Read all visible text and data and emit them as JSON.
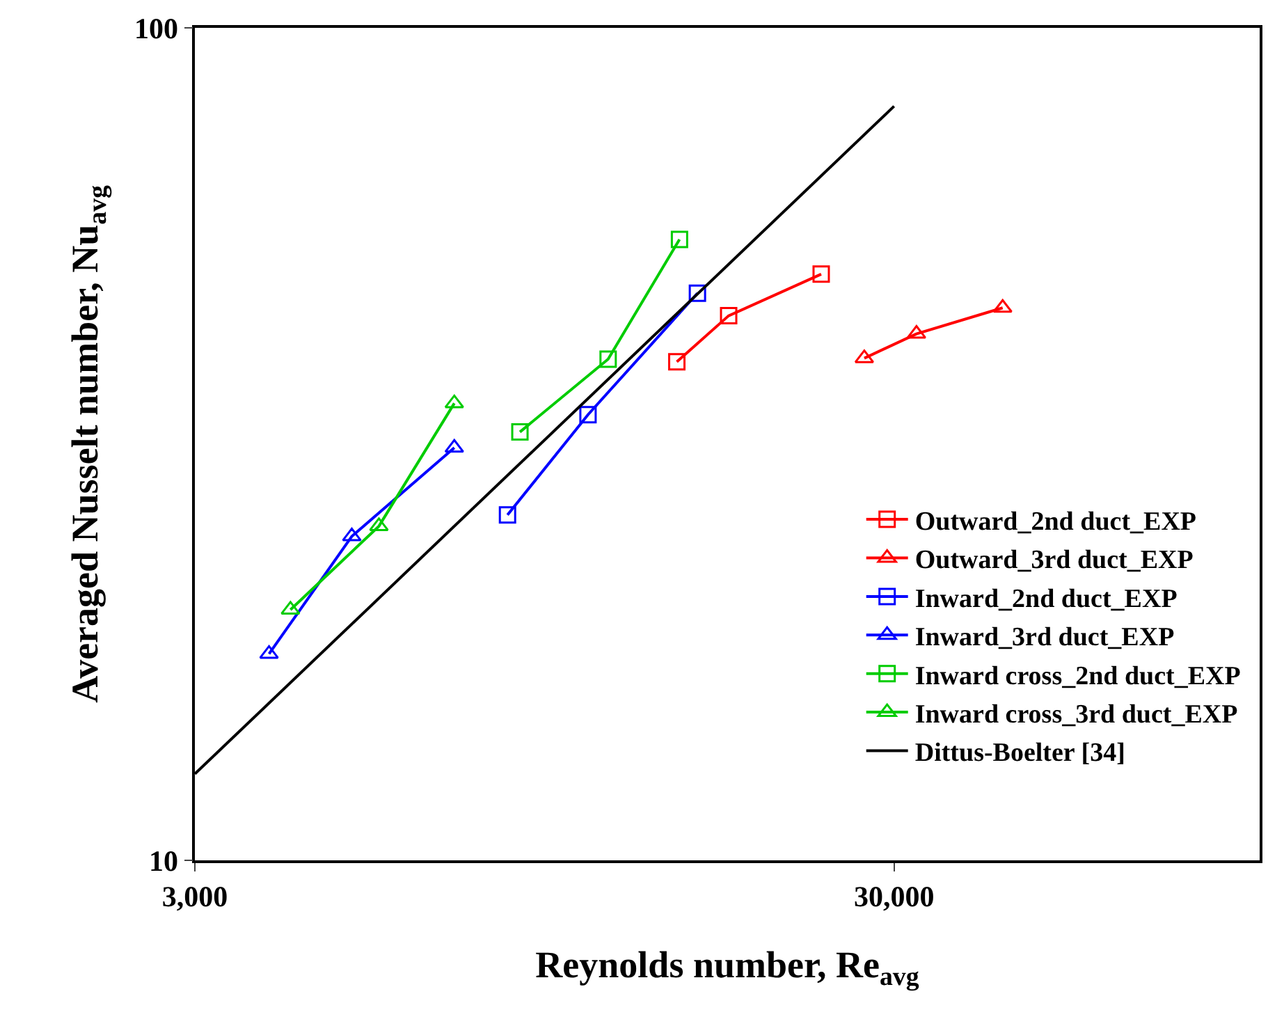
{
  "chart_data": {
    "type": "line",
    "xlabel": "Reynolds number, Re$_{avg}$",
    "ylabel": "Averaged Nusselt number, Nu$_{avg}$",
    "log": "xy",
    "xlim": [
      3000,
      100000
    ],
    "ylim": [
      10,
      100
    ],
    "xticks": [
      {
        "value": 3000,
        "label": "3,000"
      },
      {
        "value": 30000,
        "label": "30,000"
      }
    ],
    "yticks": [
      10,
      100
    ],
    "legend": "bottom right",
    "series": [
      {
        "name": "Outward_2nd duct_EXP",
        "color": "#ff0000",
        "marker": "square",
        "x": [
          14670,
          17400,
          23600
        ],
        "values": [
          39.7,
          45.1,
          50.6
        ]
      },
      {
        "name": "Outward_3rd duct_EXP",
        "color": "#ff0000",
        "marker": "triangle",
        "x": [
          27200,
          32300,
          42900
        ],
        "values": [
          40.1,
          42.9,
          46.1
        ]
      },
      {
        "name": "Inward_2nd duct_EXP",
        "color": "#0000ff",
        "marker": "square",
        "x": [
          8400,
          10950,
          15700
        ],
        "values": [
          26.0,
          34.3,
          48.0
        ]
      },
      {
        "name": "Inward_3rd duct_EXP",
        "color": "#0000ff",
        "marker": "triangle",
        "x": [
          3830,
          5030,
          7050
        ],
        "values": [
          17.7,
          24.5,
          31.3
        ]
      },
      {
        "name": "Inward cross_2nd duct_EXP",
        "color": "#00cc00",
        "marker": "square",
        "x": [
          8750,
          11700,
          14800
        ],
        "values": [
          32.7,
          40.0,
          55.7
        ]
      },
      {
        "name": "Inward cross_3rd duct_EXP",
        "color": "#00cc00",
        "marker": "triangle",
        "x": [
          4110,
          5500,
          7050
        ],
        "values": [
          20.0,
          25.2,
          35.4
        ]
      },
      {
        "name": "Dittus-Boelter [34]",
        "color": "#000000",
        "marker": "none",
        "x": [
          3000,
          30000
        ],
        "values": [
          12.7,
          80.5
        ]
      }
    ]
  }
}
